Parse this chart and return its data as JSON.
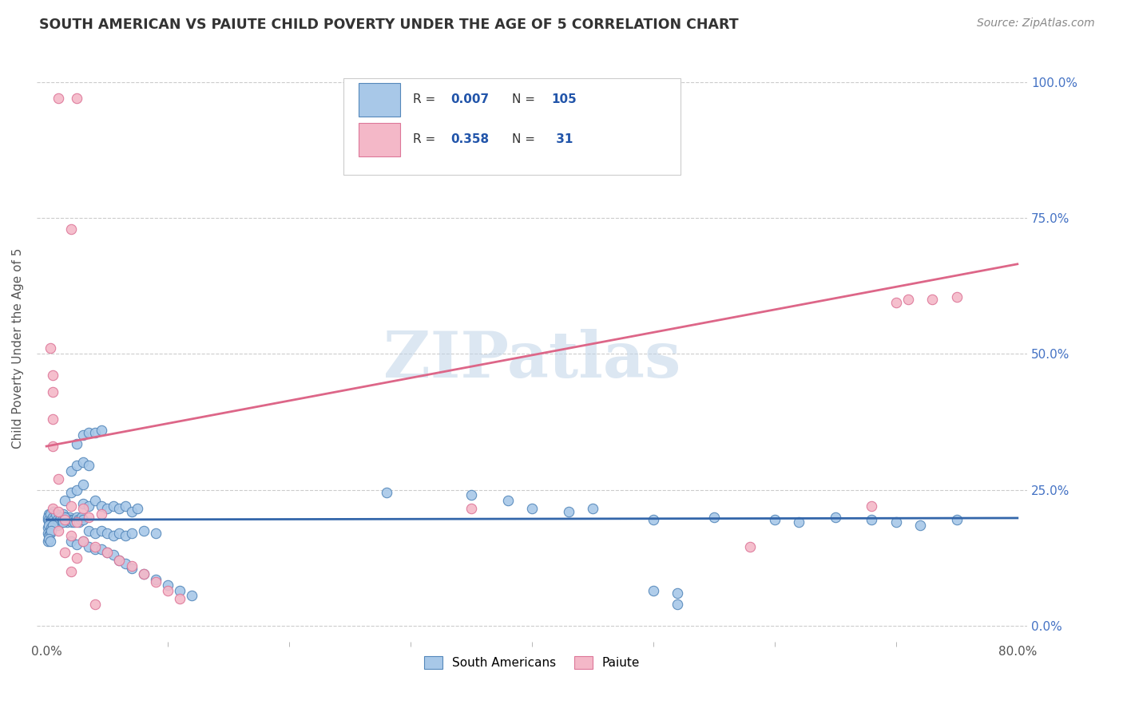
{
  "title": "SOUTH AMERICAN VS PAIUTE CHILD POVERTY UNDER THE AGE OF 5 CORRELATION CHART",
  "source": "Source: ZipAtlas.com",
  "ylabel": "Child Poverty Under the Age of 5",
  "watermark": "ZIPatlas",
  "blue_color": "#a8c8e8",
  "pink_color": "#f4b8c8",
  "blue_edge_color": "#5588bb",
  "pink_edge_color": "#dd7799",
  "blue_line_color": "#3366aa",
  "pink_line_color": "#dd6688",
  "ytick_vals": [
    0.0,
    0.25,
    0.5,
    0.75,
    1.0
  ],
  "ytick_labels": [
    "0.0%",
    "25.0%",
    "50.0%",
    "75.0%",
    "100.0%"
  ],
  "xlim": [
    0.0,
    0.8
  ],
  "ylim": [
    -0.03,
    1.05
  ],
  "blue_regression": [
    0.0,
    0.8,
    0.195,
    0.198
  ],
  "pink_regression": [
    0.0,
    0.8,
    0.33,
    0.665
  ],
  "blue_scatter": [
    [
      0.001,
      0.195
    ],
    [
      0.002,
      0.205
    ],
    [
      0.003,
      0.19
    ],
    [
      0.004,
      0.2
    ],
    [
      0.005,
      0.195
    ],
    [
      0.006,
      0.21
    ],
    [
      0.007,
      0.195
    ],
    [
      0.008,
      0.2
    ],
    [
      0.009,
      0.185
    ],
    [
      0.01,
      0.195
    ],
    [
      0.011,
      0.2
    ],
    [
      0.012,
      0.195
    ],
    [
      0.013,
      0.19
    ],
    [
      0.014,
      0.205
    ],
    [
      0.015,
      0.195
    ],
    [
      0.016,
      0.2
    ],
    [
      0.017,
      0.19
    ],
    [
      0.018,
      0.195
    ],
    [
      0.019,
      0.2
    ],
    [
      0.02,
      0.195
    ],
    [
      0.021,
      0.19
    ],
    [
      0.022,
      0.195
    ],
    [
      0.023,
      0.19
    ],
    [
      0.024,
      0.195
    ],
    [
      0.025,
      0.2
    ],
    [
      0.026,
      0.195
    ],
    [
      0.027,
      0.19
    ],
    [
      0.028,
      0.195
    ],
    [
      0.029,
      0.2
    ],
    [
      0.03,
      0.195
    ],
    [
      0.001,
      0.2
    ],
    [
      0.002,
      0.195
    ],
    [
      0.003,
      0.205
    ],
    [
      0.004,
      0.195
    ],
    [
      0.005,
      0.2
    ],
    [
      0.006,
      0.195
    ],
    [
      0.007,
      0.19
    ],
    [
      0.008,
      0.205
    ],
    [
      0.009,
      0.195
    ],
    [
      0.01,
      0.19
    ],
    [
      0.011,
      0.195
    ],
    [
      0.012,
      0.2
    ],
    [
      0.013,
      0.195
    ],
    [
      0.014,
      0.19
    ],
    [
      0.015,
      0.2
    ],
    [
      0.001,
      0.18
    ],
    [
      0.002,
      0.185
    ],
    [
      0.003,
      0.175
    ],
    [
      0.004,
      0.18
    ],
    [
      0.005,
      0.185
    ],
    [
      0.001,
      0.17
    ],
    [
      0.002,
      0.165
    ],
    [
      0.003,
      0.17
    ],
    [
      0.004,
      0.175
    ],
    [
      0.001,
      0.155
    ],
    [
      0.002,
      0.16
    ],
    [
      0.003,
      0.155
    ],
    [
      0.015,
      0.23
    ],
    [
      0.02,
      0.245
    ],
    [
      0.025,
      0.25
    ],
    [
      0.03,
      0.26
    ],
    [
      0.02,
      0.285
    ],
    [
      0.025,
      0.295
    ],
    [
      0.03,
      0.3
    ],
    [
      0.035,
      0.295
    ],
    [
      0.025,
      0.335
    ],
    [
      0.03,
      0.35
    ],
    [
      0.035,
      0.355
    ],
    [
      0.04,
      0.355
    ],
    [
      0.045,
      0.36
    ],
    [
      0.03,
      0.225
    ],
    [
      0.035,
      0.22
    ],
    [
      0.04,
      0.23
    ],
    [
      0.045,
      0.22
    ],
    [
      0.05,
      0.215
    ],
    [
      0.055,
      0.22
    ],
    [
      0.06,
      0.215
    ],
    [
      0.065,
      0.22
    ],
    [
      0.07,
      0.21
    ],
    [
      0.075,
      0.215
    ],
    [
      0.035,
      0.175
    ],
    [
      0.04,
      0.17
    ],
    [
      0.045,
      0.175
    ],
    [
      0.05,
      0.17
    ],
    [
      0.055,
      0.165
    ],
    [
      0.06,
      0.17
    ],
    [
      0.065,
      0.165
    ],
    [
      0.07,
      0.17
    ],
    [
      0.02,
      0.155
    ],
    [
      0.025,
      0.15
    ],
    [
      0.03,
      0.155
    ],
    [
      0.035,
      0.145
    ],
    [
      0.04,
      0.14
    ],
    [
      0.045,
      0.14
    ],
    [
      0.05,
      0.135
    ],
    [
      0.055,
      0.13
    ],
    [
      0.06,
      0.12
    ],
    [
      0.065,
      0.115
    ],
    [
      0.07,
      0.105
    ],
    [
      0.08,
      0.095
    ],
    [
      0.09,
      0.085
    ],
    [
      0.1,
      0.075
    ],
    [
      0.11,
      0.065
    ],
    [
      0.12,
      0.055
    ],
    [
      0.08,
      0.175
    ],
    [
      0.09,
      0.17
    ],
    [
      0.28,
      0.245
    ],
    [
      0.35,
      0.24
    ],
    [
      0.38,
      0.23
    ],
    [
      0.4,
      0.215
    ],
    [
      0.43,
      0.21
    ],
    [
      0.45,
      0.215
    ],
    [
      0.5,
      0.195
    ],
    [
      0.55,
      0.2
    ],
    [
      0.6,
      0.195
    ],
    [
      0.62,
      0.19
    ],
    [
      0.65,
      0.2
    ],
    [
      0.68,
      0.195
    ],
    [
      0.7,
      0.19
    ],
    [
      0.72,
      0.185
    ],
    [
      0.75,
      0.195
    ],
    [
      0.5,
      0.065
    ],
    [
      0.52,
      0.06
    ],
    [
      0.52,
      0.04
    ]
  ],
  "pink_scatter": [
    [
      0.01,
      0.97
    ],
    [
      0.025,
      0.97
    ],
    [
      0.02,
      0.73
    ],
    [
      0.003,
      0.51
    ],
    [
      0.005,
      0.46
    ],
    [
      0.005,
      0.43
    ],
    [
      0.005,
      0.38
    ],
    [
      0.005,
      0.33
    ],
    [
      0.01,
      0.27
    ],
    [
      0.005,
      0.215
    ],
    [
      0.01,
      0.21
    ],
    [
      0.02,
      0.22
    ],
    [
      0.03,
      0.215
    ],
    [
      0.035,
      0.2
    ],
    [
      0.045,
      0.205
    ],
    [
      0.015,
      0.195
    ],
    [
      0.025,
      0.19
    ],
    [
      0.01,
      0.175
    ],
    [
      0.02,
      0.165
    ],
    [
      0.03,
      0.155
    ],
    [
      0.04,
      0.145
    ],
    [
      0.05,
      0.135
    ],
    [
      0.06,
      0.12
    ],
    [
      0.07,
      0.11
    ],
    [
      0.08,
      0.095
    ],
    [
      0.09,
      0.08
    ],
    [
      0.1,
      0.065
    ],
    [
      0.11,
      0.05
    ],
    [
      0.015,
      0.135
    ],
    [
      0.025,
      0.125
    ],
    [
      0.02,
      0.1
    ],
    [
      0.04,
      0.04
    ],
    [
      0.35,
      0.215
    ],
    [
      0.58,
      0.145
    ],
    [
      0.68,
      0.22
    ],
    [
      0.7,
      0.595
    ],
    [
      0.71,
      0.6
    ],
    [
      0.73,
      0.6
    ],
    [
      0.75,
      0.605
    ]
  ]
}
